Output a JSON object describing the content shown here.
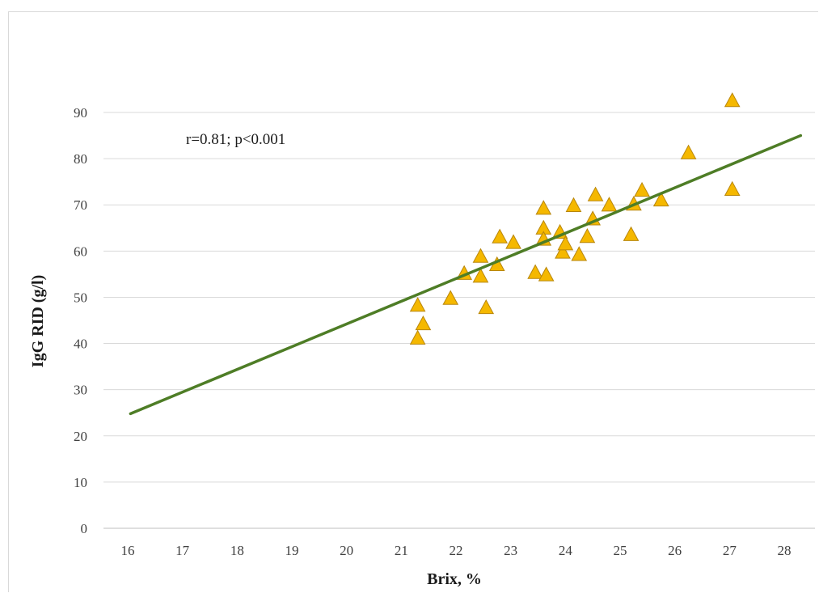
{
  "chart_data": {
    "type": "scatter",
    "xlabel": "Brix, %",
    "ylabel": "IgG RID (g/l)",
    "xlim": [
      15.5,
      28.5
    ],
    "ylim": [
      0,
      95
    ],
    "x_ticks": [
      16,
      17,
      18,
      19,
      20,
      21,
      22,
      23,
      24,
      25,
      26,
      27,
      28
    ],
    "y_ticks": [
      0,
      10,
      20,
      30,
      40,
      50,
      60,
      70,
      80,
      90
    ],
    "grid": "horizontal",
    "annotation": "r=0.81; p<0.001",
    "marker": "triangle",
    "colors": {
      "points": "#f5b800",
      "point_edge": "#b8860b",
      "trendline": "#4e7d26"
    },
    "trendline": {
      "x": [
        16.05,
        28.3
      ],
      "y": [
        24.8,
        85.0
      ]
    },
    "points": [
      {
        "x": 21.3,
        "y": 48.3
      },
      {
        "x": 21.3,
        "y": 41.2
      },
      {
        "x": 21.4,
        "y": 44.3
      },
      {
        "x": 21.9,
        "y": 49.8
      },
      {
        "x": 22.15,
        "y": 55.2
      },
      {
        "x": 22.45,
        "y": 58.9
      },
      {
        "x": 22.45,
        "y": 54.6
      },
      {
        "x": 22.55,
        "y": 47.8
      },
      {
        "x": 22.75,
        "y": 57.1
      },
      {
        "x": 22.8,
        "y": 63.1
      },
      {
        "x": 23.05,
        "y": 61.9
      },
      {
        "x": 23.45,
        "y": 55.4
      },
      {
        "x": 23.6,
        "y": 69.3
      },
      {
        "x": 23.6,
        "y": 65.0
      },
      {
        "x": 23.6,
        "y": 62.6
      },
      {
        "x": 23.65,
        "y": 54.9
      },
      {
        "x": 23.9,
        "y": 64.1
      },
      {
        "x": 23.95,
        "y": 59.8
      },
      {
        "x": 24.0,
        "y": 61.6
      },
      {
        "x": 24.15,
        "y": 69.9
      },
      {
        "x": 24.25,
        "y": 59.3
      },
      {
        "x": 24.4,
        "y": 63.2
      },
      {
        "x": 24.5,
        "y": 67.0
      },
      {
        "x": 24.55,
        "y": 72.2
      },
      {
        "x": 24.8,
        "y": 70.0
      },
      {
        "x": 25.2,
        "y": 63.6
      },
      {
        "x": 25.25,
        "y": 70.2
      },
      {
        "x": 25.4,
        "y": 73.2
      },
      {
        "x": 25.75,
        "y": 71.1
      },
      {
        "x": 26.25,
        "y": 81.3
      },
      {
        "x": 27.05,
        "y": 92.6
      },
      {
        "x": 27.05,
        "y": 73.4
      }
    ]
  }
}
